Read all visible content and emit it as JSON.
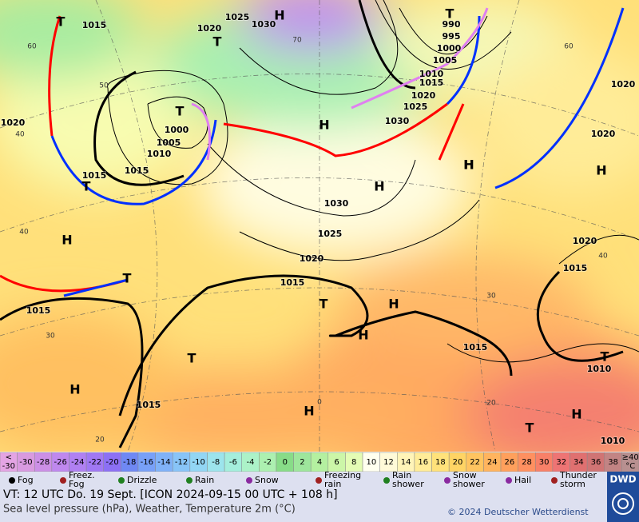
{
  "map": {
    "isobar_labels": [
      1015,
      1025,
      1030,
      1020,
      990,
      995,
      1000,
      1005,
      1010,
      1015,
      1020,
      1025,
      1030,
      1020,
      1020,
      1000,
      1005,
      1010,
      1015,
      1015,
      1020,
      1030,
      1025,
      1020,
      1020,
      1015,
      1015,
      1015,
      1015,
      1010,
      1015,
      1010
    ],
    "pressure_centers": [
      "H",
      "T",
      "T",
      "T",
      "T",
      "H",
      "H",
      "H",
      "H",
      "H",
      "T",
      "H",
      "T",
      "T",
      "H",
      "H",
      "T",
      "T",
      "H",
      "H",
      "T",
      "H"
    ],
    "latitude_labels": [
      60,
      50,
      40,
      40,
      30,
      20,
      70,
      60,
      40,
      30,
      20,
      0
    ]
  },
  "temperature_scale": {
    "below_label": [
      "<",
      "-30"
    ],
    "values": [
      -30,
      -28,
      -26,
      -24,
      -22,
      -20,
      -18,
      -16,
      -14,
      -12,
      -10,
      -8,
      -6,
      -4,
      -2,
      0,
      2,
      4,
      6,
      8,
      10,
      12,
      14,
      16,
      18,
      20,
      22,
      24,
      26,
      28,
      30,
      32,
      34,
      36,
      38
    ],
    "colors": [
      "#d99ae0",
      "#cc8fe6",
      "#bf88ee",
      "#b080f2",
      "#a078f4",
      "#8c70f4",
      "#6f88f4",
      "#78a0f8",
      "#80b2f8",
      "#88c4f8",
      "#92d6f4",
      "#9ce4ec",
      "#a4eedc",
      "#acf2c8",
      "#acf0b0",
      "#88dc88",
      "#9ee69c",
      "#b4f0a0",
      "#ccf6a8",
      "#e4fcb4",
      "#fffff0",
      "#fffad8",
      "#fff4b8",
      "#ffec98",
      "#ffe27a",
      "#ffd464",
      "#ffc460",
      "#ffb45e",
      "#ffa05c",
      "#ff9060",
      "#f88068",
      "#ee7474",
      "#e07070",
      "#d07474",
      "#c28484"
    ],
    "below_color": "#e4a4e4",
    "above_color": "#b89090",
    "above_label": [
      "≥40",
      "°C"
    ]
  },
  "weather_legend": [
    [
      "Fog"
    ],
    [
      "Freez.",
      "Fog"
    ],
    [
      "Drizzle"
    ],
    [
      "Rain"
    ],
    [
      "Snow"
    ],
    [
      "Freezing",
      "rain"
    ],
    [
      "Rain",
      "shower"
    ],
    [
      "Snow",
      "shower"
    ],
    [
      "Hail"
    ],
    [
      "Thunder",
      "storm"
    ]
  ],
  "footer": {
    "valid_time": "VT: 12 UTC Do.  19 Sept. [ICON 2024-09-15  00 UTC + 108 h]",
    "description": "Sea level pressure (hPa), Weather, Temperature 2m (°C)",
    "copyright": "© 2024 Deutscher Wetterdienst",
    "logo": "DWD"
  }
}
